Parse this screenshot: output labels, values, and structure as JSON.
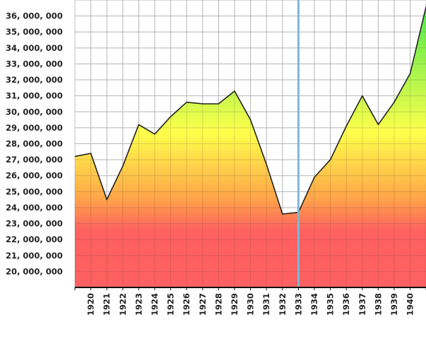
{
  "chart_data": {
    "type": "area",
    "title": "",
    "xlabel": "",
    "ylabel": "",
    "x": [
      1919,
      1920,
      1921,
      1922,
      1923,
      1924,
      1925,
      1926,
      1927,
      1928,
      1929,
      1930,
      1931,
      1932,
      1933,
      1934,
      1935,
      1936,
      1937,
      1938,
      1939,
      1940,
      1941
    ],
    "x_tick_labels": [
      "1920",
      "1921",
      "1922",
      "1923",
      "1924",
      "1925",
      "1926",
      "1927",
      "1928",
      "1929",
      "1930",
      "1931",
      "1932",
      "1933",
      "1934",
      "1935",
      "1936",
      "1937",
      "1938",
      "1939",
      "1940"
    ],
    "y_tick_values": [
      20000000,
      21000000,
      22000000,
      23000000,
      24000000,
      25000000,
      26000000,
      27000000,
      28000000,
      29000000,
      30000000,
      31000000,
      32000000,
      33000000,
      34000000,
      35000000,
      36000000
    ],
    "y_tick_labels": [
      "20, 000, 000",
      "21, 000, 000",
      "22, 000, 000",
      "23, 000, 000",
      "24, 000, 000",
      "25, 000, 000",
      "26, 000, 000",
      "27, 000, 000",
      "28, 000, 000",
      "29, 000, 000",
      "30, 000, 000",
      "31, 000, 000",
      "32, 000, 000",
      "33, 000, 000",
      "34, 000, 000",
      "35, 000, 000",
      "36, 000, 000"
    ],
    "series": [
      {
        "values": [
          27200000,
          27400000,
          24500000,
          26600000,
          29200000,
          28600000,
          29700000,
          30600000,
          30500000,
          30500000,
          31300000,
          29500000,
          26700000,
          23600000,
          23700000,
          25900000,
          27000000,
          29100000,
          31000000,
          29200000,
          30600000,
          32400000,
          36600000
        ]
      }
    ],
    "highlight_x": 1933,
    "ylim": [
      19000000,
      37000000
    ],
    "grid": true,
    "colors": {
      "fill_top": "#33e633",
      "fill_mid": "#ffff33",
      "fill_orange": "#ff9a2e",
      "fill_bottom": "#ff4a4a",
      "line": "#222222",
      "highlight": "#7fb8d6",
      "grid": "#cccccc"
    }
  }
}
